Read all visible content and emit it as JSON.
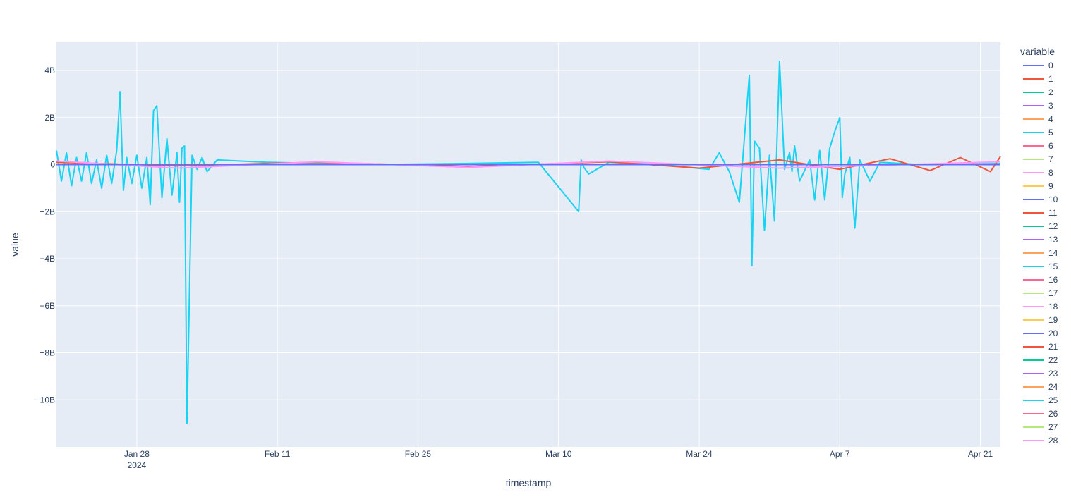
{
  "chart_data": {
    "type": "line",
    "xlabel": "timestamp",
    "ylabel": "value",
    "legend_title": "variable",
    "legend_position": "right",
    "grid": true,
    "background_color": "#E5ECF6",
    "x_range": [
      "2024-01-20",
      "2024-04-23"
    ],
    "ylim": [
      -12000000000,
      5200000000
    ],
    "x_ticks": [
      {
        "date": "2024-01-28",
        "label": "Jan 28",
        "sublabel": "2024"
      },
      {
        "date": "2024-02-11",
        "label": "Feb 11",
        "sublabel": ""
      },
      {
        "date": "2024-02-25",
        "label": "Feb 25",
        "sublabel": ""
      },
      {
        "date": "2024-03-10",
        "label": "Mar 10",
        "sublabel": ""
      },
      {
        "date": "2024-03-24",
        "label": "Mar 24",
        "sublabel": ""
      },
      {
        "date": "2024-04-07",
        "label": "Apr 7",
        "sublabel": ""
      },
      {
        "date": "2024-04-21",
        "label": "Apr 21",
        "sublabel": ""
      }
    ],
    "y_ticks": [
      {
        "value": 4000000000,
        "label": "4B"
      },
      {
        "value": 2000000000,
        "label": "2B"
      },
      {
        "value": 0,
        "label": "0"
      },
      {
        "value": -2000000000,
        "label": "−2B"
      },
      {
        "value": -4000000000,
        "label": "−4B"
      },
      {
        "value": -6000000000,
        "label": "−6B"
      },
      {
        "value": -8000000000,
        "label": "−8B"
      },
      {
        "value": -10000000000,
        "label": "−10B"
      }
    ],
    "legend": [
      {
        "name": "0",
        "color": "#636efa"
      },
      {
        "name": "1",
        "color": "#EF553B"
      },
      {
        "name": "2",
        "color": "#00cc96"
      },
      {
        "name": "3",
        "color": "#ab63fa"
      },
      {
        "name": "4",
        "color": "#FFA15A"
      },
      {
        "name": "5",
        "color": "#19d3f3"
      },
      {
        "name": "6",
        "color": "#FF6692"
      },
      {
        "name": "7",
        "color": "#B6E880"
      },
      {
        "name": "8",
        "color": "#FF97FF"
      },
      {
        "name": "9",
        "color": "#FECB52"
      },
      {
        "name": "10",
        "color": "#636efa"
      },
      {
        "name": "11",
        "color": "#EF553B"
      },
      {
        "name": "12",
        "color": "#00cc96"
      },
      {
        "name": "13",
        "color": "#ab63fa"
      },
      {
        "name": "14",
        "color": "#FFA15A"
      },
      {
        "name": "15",
        "color": "#19d3f3"
      },
      {
        "name": "16",
        "color": "#FF6692"
      },
      {
        "name": "17",
        "color": "#B6E880"
      },
      {
        "name": "18",
        "color": "#FF97FF"
      },
      {
        "name": "19",
        "color": "#FECB52"
      },
      {
        "name": "20",
        "color": "#636efa"
      },
      {
        "name": "21",
        "color": "#EF553B"
      },
      {
        "name": "22",
        "color": "#00cc96"
      },
      {
        "name": "23",
        "color": "#ab63fa"
      },
      {
        "name": "24",
        "color": "#FFA15A"
      },
      {
        "name": "25",
        "color": "#19d3f3"
      },
      {
        "name": "26",
        "color": "#FF6692"
      },
      {
        "name": "27",
        "color": "#B6E880"
      },
      {
        "name": "28",
        "color": "#FF97FF"
      }
    ],
    "series": [
      {
        "legend_index": 5,
        "color": "#19d3f3",
        "x": [
          "2024-01-20",
          "2024-01-20T12:00",
          "2024-01-21",
          "2024-01-21T12:00",
          "2024-01-22",
          "2024-01-22T12:00",
          "2024-01-23",
          "2024-01-23T12:00",
          "2024-01-24",
          "2024-01-24T12:00",
          "2024-01-25",
          "2024-01-25T12:00",
          "2024-01-26",
          "2024-01-26T08:00",
          "2024-01-26T16:00",
          "2024-01-27",
          "2024-01-27T12:00",
          "2024-01-28",
          "2024-01-28T12:00",
          "2024-01-29",
          "2024-01-29T08:00",
          "2024-01-29T16:00",
          "2024-01-30",
          "2024-01-30T12:00",
          "2024-01-31",
          "2024-01-31T12:00",
          "2024-02-01",
          "2024-02-01T06:00",
          "2024-02-01T12:00",
          "2024-02-01T18:00",
          "2024-02-02",
          "2024-02-02T12:00",
          "2024-02-03",
          "2024-02-03T12:00",
          "2024-02-04",
          "2024-02-05",
          "2024-02-10",
          "2024-02-20",
          "2024-03-01",
          "2024-03-08",
          "2024-03-12",
          "2024-03-12T06:00",
          "2024-03-12T12:00",
          "2024-03-13",
          "2024-03-15",
          "2024-03-20",
          "2024-03-25",
          "2024-03-26",
          "2024-03-27",
          "2024-03-28",
          "2024-03-29",
          "2024-03-29T06:00",
          "2024-03-29T12:00",
          "2024-03-30",
          "2024-03-30T12:00",
          "2024-03-31",
          "2024-03-31T12:00",
          "2024-04-01",
          "2024-04-01T12:00",
          "2024-04-02",
          "2024-04-02T06:00",
          "2024-04-02T12:00",
          "2024-04-03",
          "2024-04-04",
          "2024-04-04T12:00",
          "2024-04-05",
          "2024-04-05T12:00",
          "2024-04-06",
          "2024-04-06T12:00",
          "2024-04-07",
          "2024-04-07T06:00",
          "2024-04-07T12:00",
          "2024-04-08",
          "2024-04-08T12:00",
          "2024-04-09",
          "2024-04-10",
          "2024-04-11",
          "2024-04-15",
          "2024-04-23"
        ],
        "y": [
          600000000,
          -700000000,
          500000000,
          -900000000,
          300000000,
          -700000000,
          500000000,
          -800000000,
          200000000,
          -1000000000,
          400000000,
          -800000000,
          600000000,
          3100000000,
          -1100000000,
          300000000,
          -800000000,
          400000000,
          -1000000000,
          300000000,
          -1700000000,
          2300000000,
          2500000000,
          -1400000000,
          1100000000,
          -1300000000,
          500000000,
          -1600000000,
          700000000,
          800000000,
          -11000000000,
          400000000,
          -200000000,
          300000000,
          -300000000,
          200000000,
          100000000,
          0,
          50000000,
          100000000,
          -2000000000,
          200000000,
          -100000000,
          -400000000,
          100000000,
          0,
          -200000000,
          500000000,
          -300000000,
          -1600000000,
          3800000000,
          -4300000000,
          1000000000,
          700000000,
          -2800000000,
          400000000,
          -2400000000,
          4400000000,
          -200000000,
          500000000,
          -300000000,
          800000000,
          -700000000,
          200000000,
          -1500000000,
          600000000,
          -1500000000,
          700000000,
          1400000000,
          2000000000,
          -1400000000,
          -400000000,
          300000000,
          -2700000000,
          200000000,
          -700000000,
          100000000,
          0,
          50000000
        ]
      },
      {
        "legend_index": 1,
        "color": "#EF553B",
        "x": [
          "2024-01-20",
          "2024-02-01",
          "2024-02-15",
          "2024-03-01",
          "2024-03-15",
          "2024-03-24",
          "2024-04-01",
          "2024-04-07",
          "2024-04-12",
          "2024-04-16",
          "2024-04-19",
          "2024-04-22",
          "2024-04-23"
        ],
        "y": [
          100000000,
          -50000000,
          100000000,
          -80000000,
          120000000,
          -150000000,
          200000000,
          -200000000,
          250000000,
          -250000000,
          300000000,
          -300000000,
          350000000
        ]
      },
      {
        "legend_index": 8,
        "color": "#FF97FF",
        "x": [
          "2024-01-20",
          "2024-02-01",
          "2024-02-15",
          "2024-03-01",
          "2024-03-15",
          "2024-04-01",
          "2024-04-23"
        ],
        "y": [
          150000000,
          -150000000,
          120000000,
          -120000000,
          150000000,
          -150000000,
          120000000
        ]
      },
      {
        "legend_index": 0,
        "color": "#636efa",
        "x": [
          "2024-01-20",
          "2024-04-23"
        ],
        "y": [
          0,
          0
        ]
      }
    ]
  }
}
